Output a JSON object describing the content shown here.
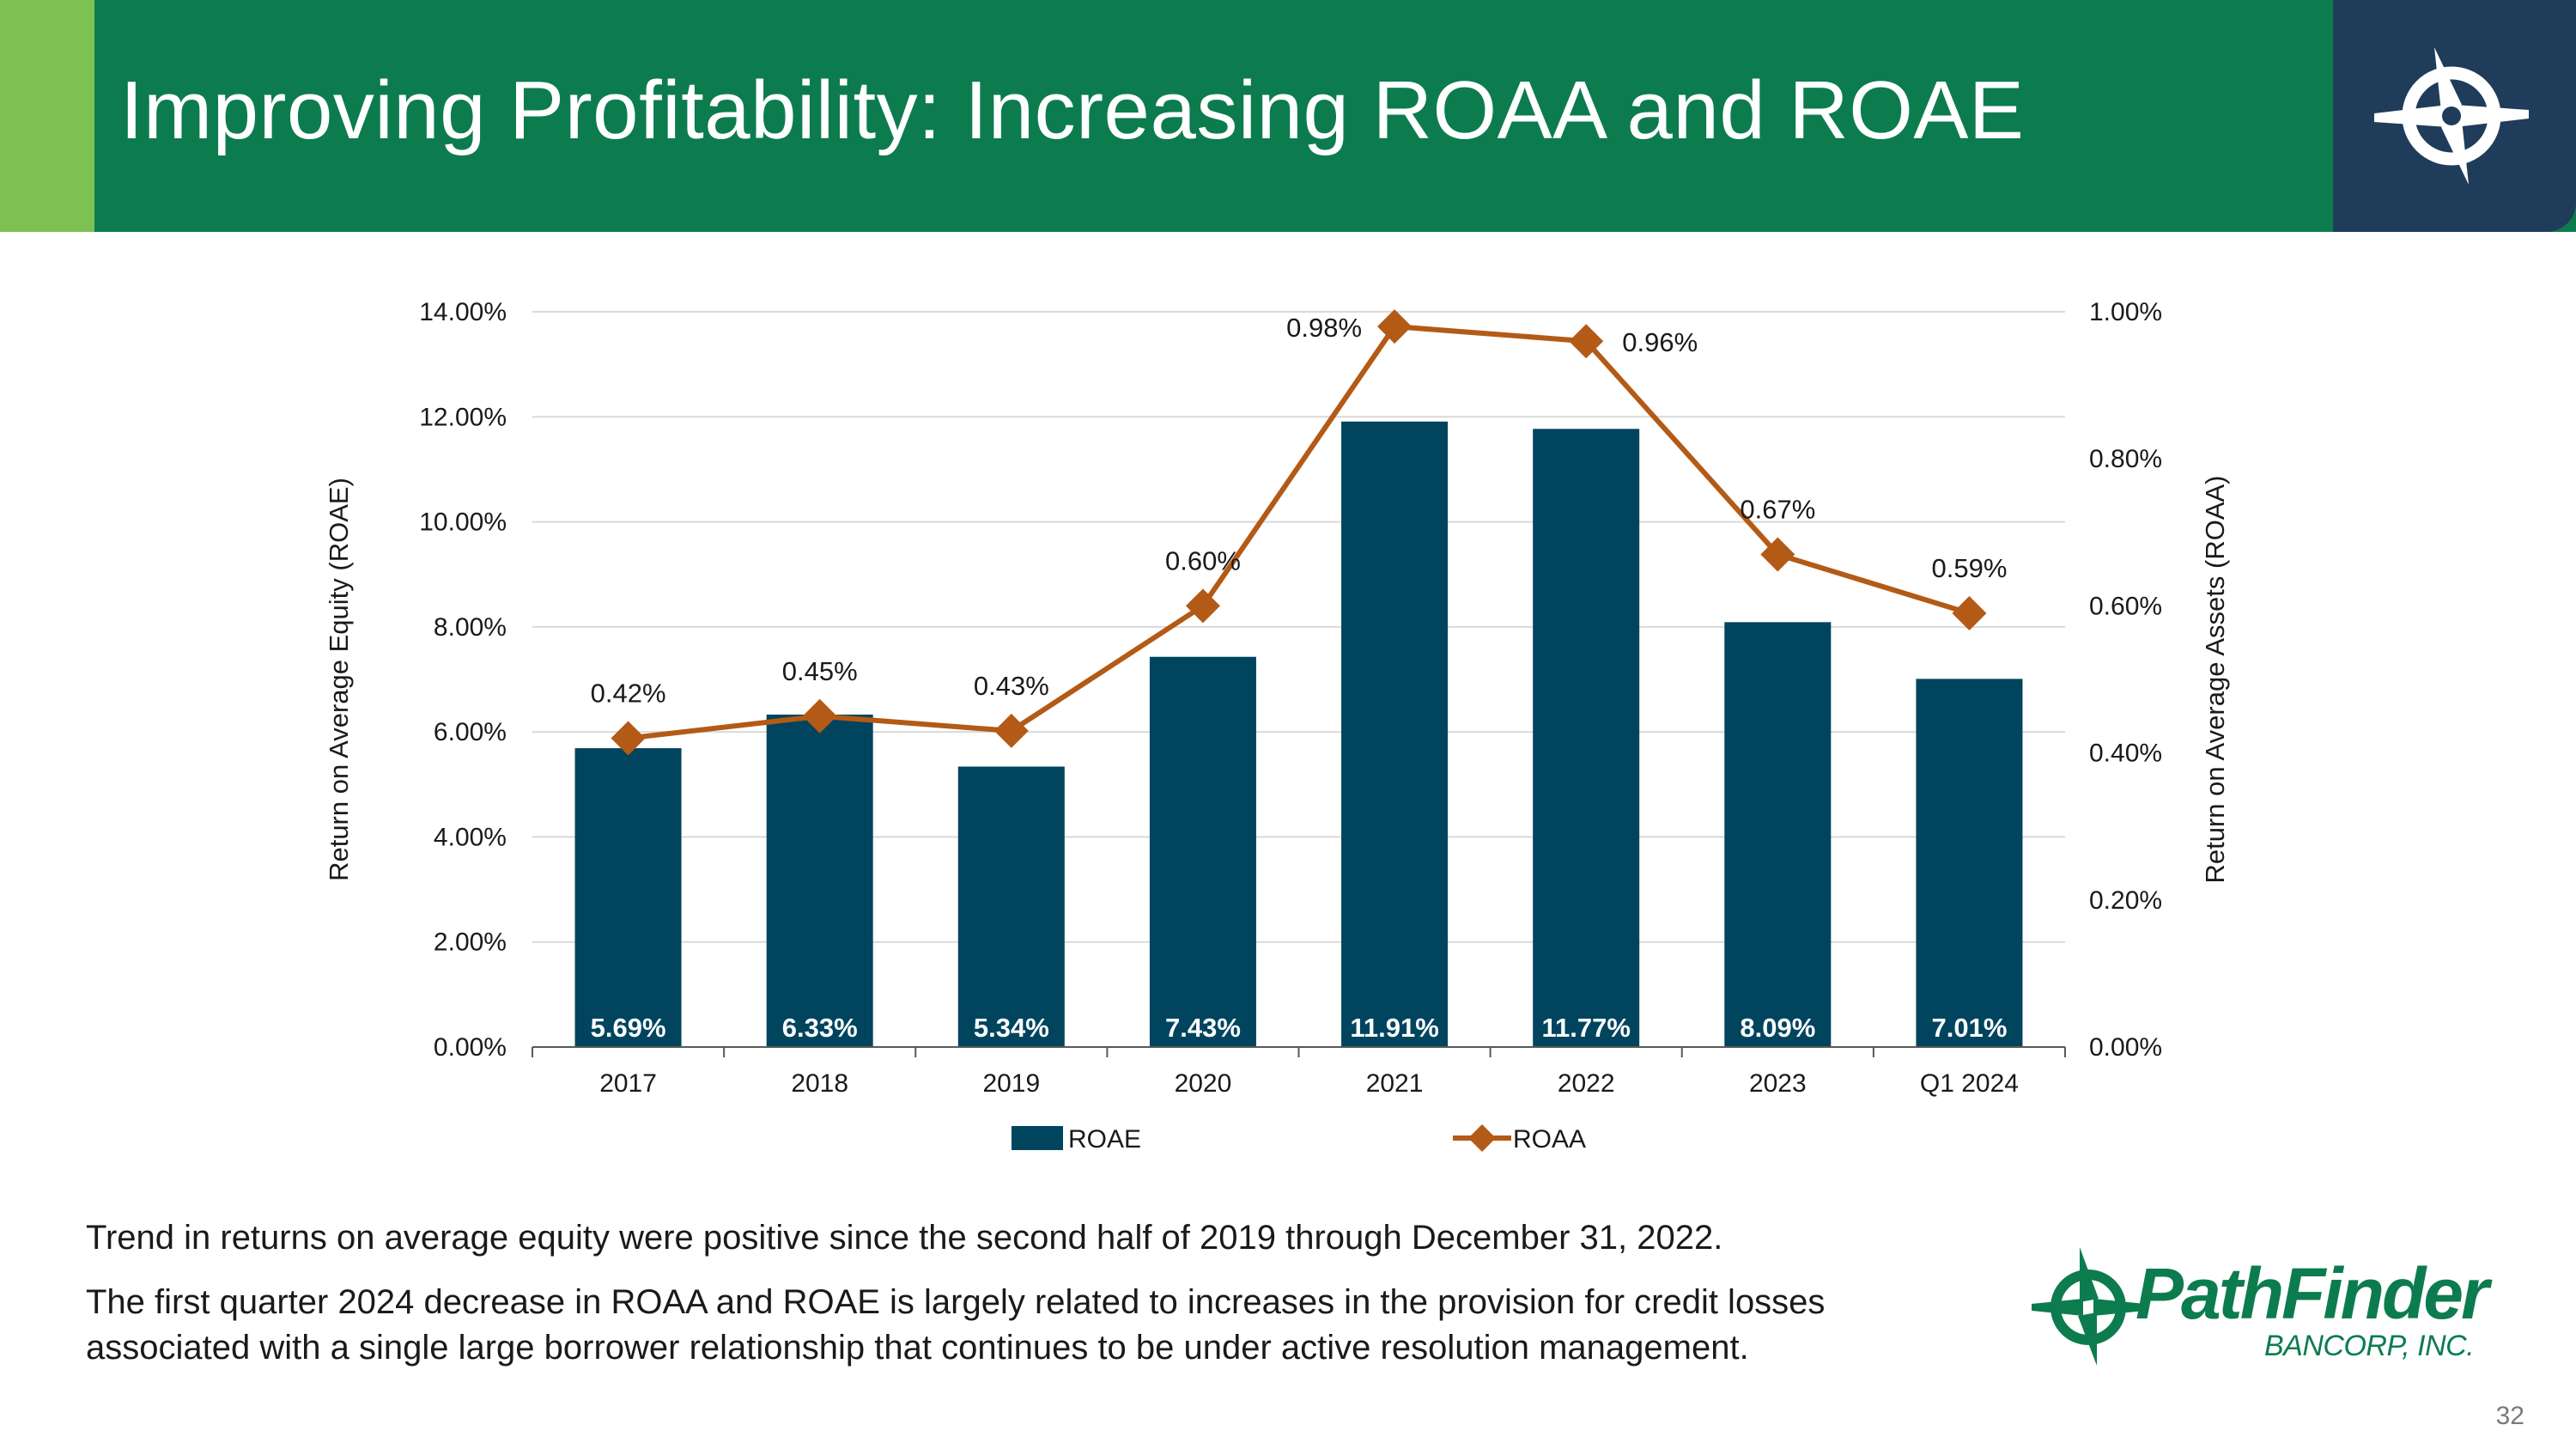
{
  "slide": {
    "title": "Improving Profitability: Increasing ROAA and ROAE",
    "page_number": "32",
    "notes": [
      "Trend in returns on average equity were positive since the second half of 2019 through December 31, 2022.",
      "The first quarter 2024 decrease in ROAA and ROAE is largely related to increases in the provision for credit losses associated with a single large borrower relationship that continues to be under active resolution management."
    ]
  },
  "brand": {
    "name": "PathFinder",
    "subtitle": "BANCORP, INC.",
    "color": "#0c7c4f"
  },
  "chart_data": {
    "type": "bar",
    "categories": [
      "2017",
      "2018",
      "2019",
      "2020",
      "2021",
      "2022",
      "2023",
      "Q1 2024"
    ],
    "series": [
      {
        "name": "ROAE",
        "type": "bar",
        "axis": "left",
        "color": "#00445e",
        "values": [
          5.69,
          6.33,
          5.34,
          7.43,
          11.91,
          11.77,
          8.09,
          7.01
        ],
        "labels": [
          "5.69%",
          "6.33%",
          "5.34%",
          "7.43%",
          "11.91%",
          "11.77%",
          "8.09%",
          "7.01%"
        ]
      },
      {
        "name": "ROAA",
        "type": "line",
        "axis": "right",
        "color": "#b35a16",
        "marker": "diamond",
        "values": [
          0.42,
          0.45,
          0.43,
          0.6,
          0.98,
          0.96,
          0.67,
          0.59
        ],
        "labels": [
          "0.42%",
          "0.45%",
          "0.43%",
          "0.60%",
          "0.98%",
          "0.96%",
          "0.67%",
          "0.59%"
        ]
      }
    ],
    "y_left": {
      "label": "Return on Average Equity (ROAE)",
      "range": [
        0,
        14
      ],
      "ticks": [
        "0.00%",
        "2.00%",
        "4.00%",
        "6.00%",
        "8.00%",
        "10.00%",
        "12.00%",
        "14.00%"
      ]
    },
    "y_right": {
      "label": "Return on Average Assets (ROAA)",
      "range": [
        0,
        1.0
      ],
      "ticks": [
        "0.00%",
        "0.20%",
        "0.40%",
        "0.60%",
        "0.80%",
        "1.00%"
      ]
    },
    "grid": true,
    "legend_position": "bottom"
  }
}
